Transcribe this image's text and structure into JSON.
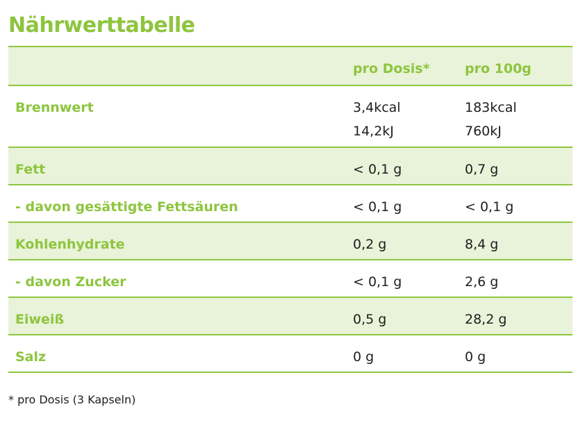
{
  "title": "Nährwerttabelle",
  "columns": {
    "per_dose": "pro Dosis*",
    "per_100g": "pro 100g"
  },
  "rows": [
    {
      "label": "Brennwert",
      "per_dose": [
        "3,4kcal",
        "14,2kJ"
      ],
      "per_100g": [
        "183kcal",
        "760kJ"
      ]
    },
    {
      "label": "Fett",
      "per_dose": "< 0,1 g",
      "per_100g": "0,7 g"
    },
    {
      "label": "- davon gesättigte Fettsäuren",
      "per_dose": "< 0,1 g",
      "per_100g": "< 0,1 g"
    },
    {
      "label": "Kohlenhydrate",
      "per_dose": "0,2 g",
      "per_100g": "8,4 g"
    },
    {
      "label": "- davon Zucker",
      "per_dose": "< 0,1 g",
      "per_100g": "2,6 g"
    },
    {
      "label": "Eiweiß",
      "per_dose": "0,5 g",
      "per_100g": "28,2 g"
    },
    {
      "label": "Salz",
      "per_dose": "0 g",
      "per_100g": "0 g"
    }
  ],
  "footnote": "* pro Dosis (3 Kapseln)",
  "colors": {
    "accent": "#8dc53e",
    "row_shade": "#e9f3d9",
    "text": "#1e1e1e"
  }
}
